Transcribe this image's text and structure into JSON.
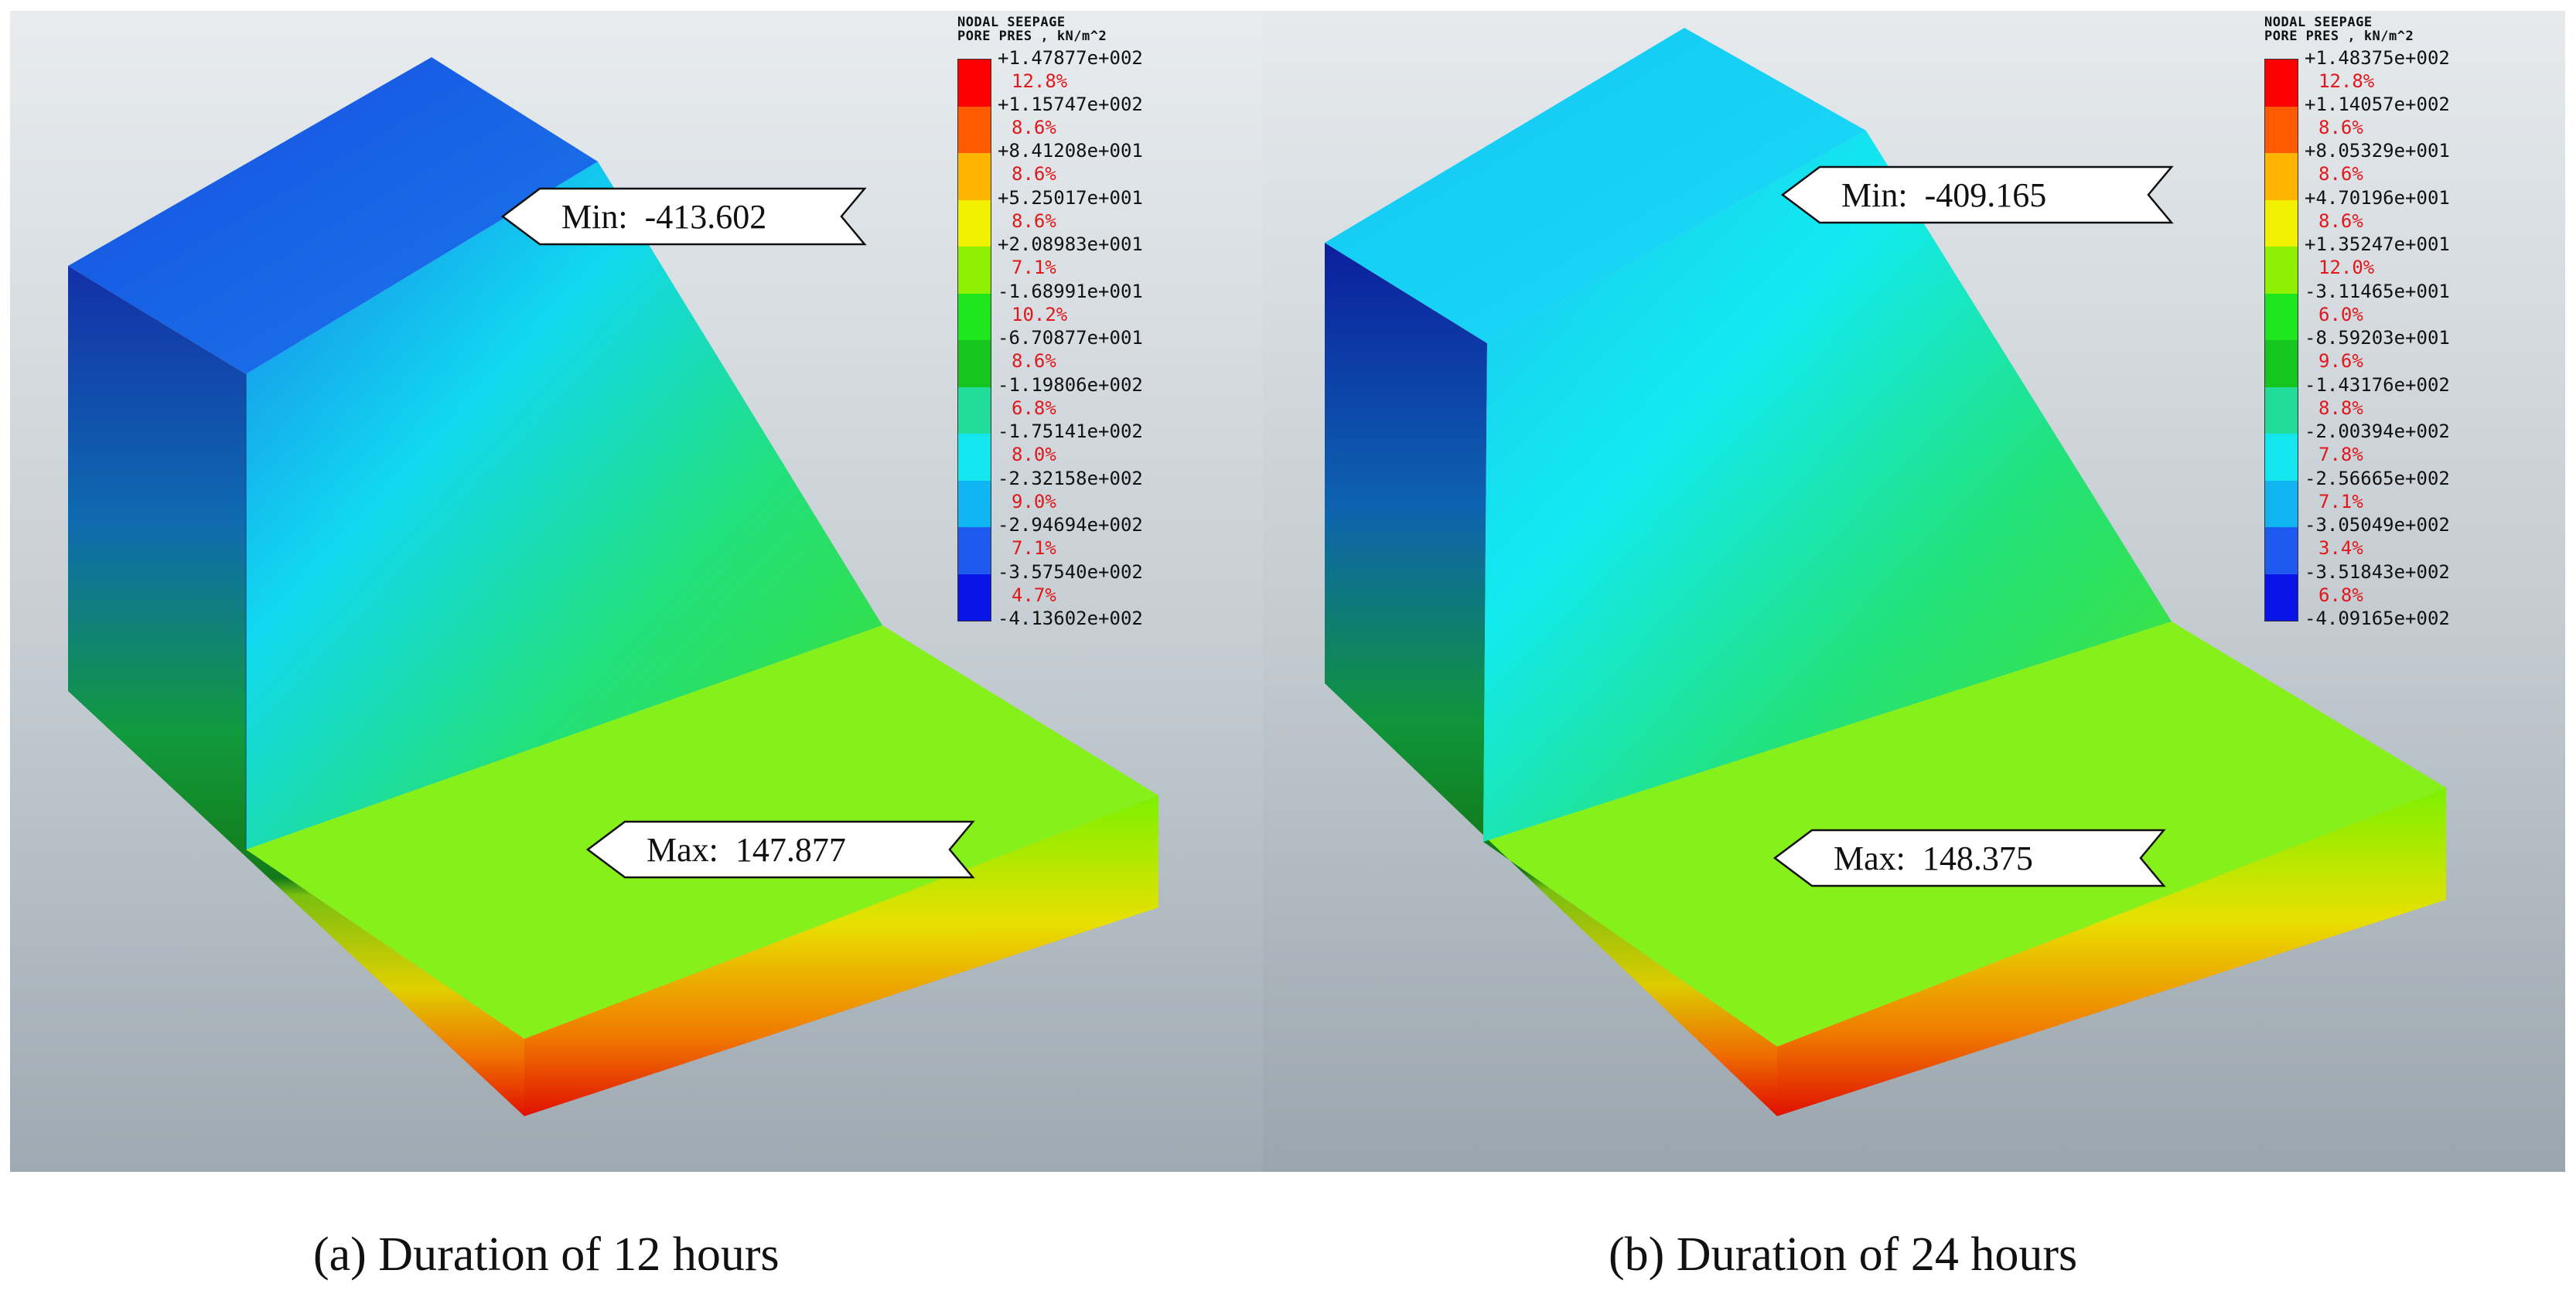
{
  "panels": [
    {
      "legend": {
        "title_line1": "NODAL SEEPAGE",
        "title_line2": "PORE PRES , kN/m^2",
        "values": [
          "+1.47877e+002",
          "+1.15747e+002",
          "+8.41208e+001",
          "+5.25017e+001",
          "+2.08983e+001",
          "-1.68991e+001",
          "-6.70877e+001",
          "-1.19806e+002",
          "-1.75141e+002",
          "-2.32158e+002",
          "-2.94694e+002",
          "-3.57540e+002",
          "-4.13602e+002"
        ],
        "percents": [
          "12.8%",
          "8.6%",
          "8.6%",
          "8.6%",
          "7.1%",
          "10.2%",
          "8.6%",
          "6.8%",
          "8.0%",
          "9.0%",
          "7.1%",
          "4.7%"
        ]
      },
      "min_label": "Min:  -413.602",
      "max_label": "Max:  147.877",
      "caption": "(a) Duration of 12 hours"
    },
    {
      "legend": {
        "title_line1": "NODAL SEEPAGE",
        "title_line2": "PORE PRES , kN/m^2",
        "values": [
          "+1.48375e+002",
          "+1.14057e+002",
          "+8.05329e+001",
          "+4.70196e+001",
          "+1.35247e+001",
          "-3.11465e+001",
          "-8.59203e+001",
          "-1.43176e+002",
          "-2.00394e+002",
          "-2.56665e+002",
          "-3.05049e+002",
          "-3.51843e+002",
          "-4.09165e+002"
        ],
        "percents": [
          "12.8%",
          "8.6%",
          "8.6%",
          "8.6%",
          "12.0%",
          "6.0%",
          "9.6%",
          "8.8%",
          "7.8%",
          "7.1%",
          "3.4%",
          "6.8%"
        ]
      },
      "min_label": "Min:  -409.165",
      "max_label": "Max:  148.375",
      "caption": "(b) Duration of 24 hours"
    }
  ],
  "colors": {
    "legend_scale": [
      "#ff0000",
      "#ff5a00",
      "#ffb400",
      "#f0f000",
      "#8cf000",
      "#1ee61e",
      "#17c51f",
      "#22dd99",
      "#14e6f0",
      "#10b4f0",
      "#1e5af0",
      "#0a14e6"
    ],
    "percent_text": "#e0181a"
  }
}
